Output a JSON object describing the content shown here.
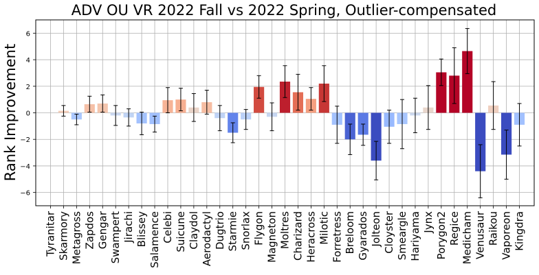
{
  "chart_data": {
    "type": "bar",
    "title": "ADV OU VR 2022 Fall vs 2022 Spring, Outlier-compensated",
    "xlabel": "",
    "ylabel": "Rank Improvement",
    "ylim": [
      -7,
      7
    ],
    "yticks": [
      -6,
      -4,
      -2,
      0,
      2,
      4,
      6
    ],
    "grid": true,
    "error_bars": true,
    "categories": [
      "Tyranitar",
      "Skarmory",
      "Metagross",
      "Zapdos",
      "Gengar",
      "Swampert",
      "Jirachi",
      "Blissey",
      "Salamence",
      "Celebi",
      "Suicune",
      "Claydol",
      "Aerodactyl",
      "Dugtrio",
      "Starmie",
      "Snorlax",
      "Flygon",
      "Magneton",
      "Moltres",
      "Charizard",
      "Heracross",
      "Milotic",
      "Forretress",
      "Breloom",
      "Gyarados",
      "Jolteon",
      "Cloyster",
      "Smeargle",
      "Hariyama",
      "Jynx",
      "Porygon2",
      "Regice",
      "Medicham",
      "Venusaur",
      "Raikou",
      "Vaporeon",
      "Kingdra"
    ],
    "values": [
      0.0,
      0.15,
      -0.5,
      0.65,
      0.7,
      -0.2,
      -0.35,
      -0.8,
      -0.85,
      0.95,
      1.0,
      0.4,
      0.8,
      -0.4,
      -1.5,
      -0.5,
      1.95,
      -0.3,
      2.35,
      1.55,
      1.05,
      2.2,
      -0.9,
      -2.0,
      -1.65,
      -3.6,
      -1.05,
      -0.85,
      -0.2,
      0.4,
      3.05,
      2.8,
      4.65,
      -4.4,
      0.55,
      -3.15,
      -0.9
    ],
    "errors": [
      0.0,
      0.4,
      0.4,
      0.6,
      0.65,
      0.75,
      0.65,
      0.85,
      0.6,
      0.95,
      0.85,
      1.05,
      0.9,
      0.95,
      0.75,
      0.75,
      0.85,
      1.05,
      1.2,
      1.35,
      0.85,
      1.35,
      1.4,
      1.15,
      0.8,
      1.45,
      1.25,
      1.85,
      1.3,
      1.65,
      1.0,
      2.1,
      1.7,
      2.0,
      1.8,
      1.85,
      1.6
    ],
    "colors": [
      "#dcdddd",
      "#f2cbb7",
      "#aac7fd",
      "#f5c0a7",
      "#f4c5ad",
      "#c9d7f0",
      "#c0d4f5",
      "#a3c2fe",
      "#a1c0ff",
      "#f7b497",
      "#f7af91",
      "#ead4c8",
      "#f6bda2",
      "#bfd3f6",
      "#6384eb",
      "#bbd1f8",
      "#d24b40",
      "#c6d6f1",
      "#bd1f2d",
      "#e46e56",
      "#f59f80",
      "#c73635",
      "#a3c2fe",
      "#4a63d3",
      "#5b7ae5",
      "#3b4cc0",
      "#98b9ff",
      "#a7c5fe",
      "#cbd8ee",
      "#e8d6cc",
      "#b40426",
      "#b40426",
      "#b40426",
      "#3b4cc0",
      "#efcfbf",
      "#3b4cc0",
      "#a2c1ff"
    ]
  }
}
